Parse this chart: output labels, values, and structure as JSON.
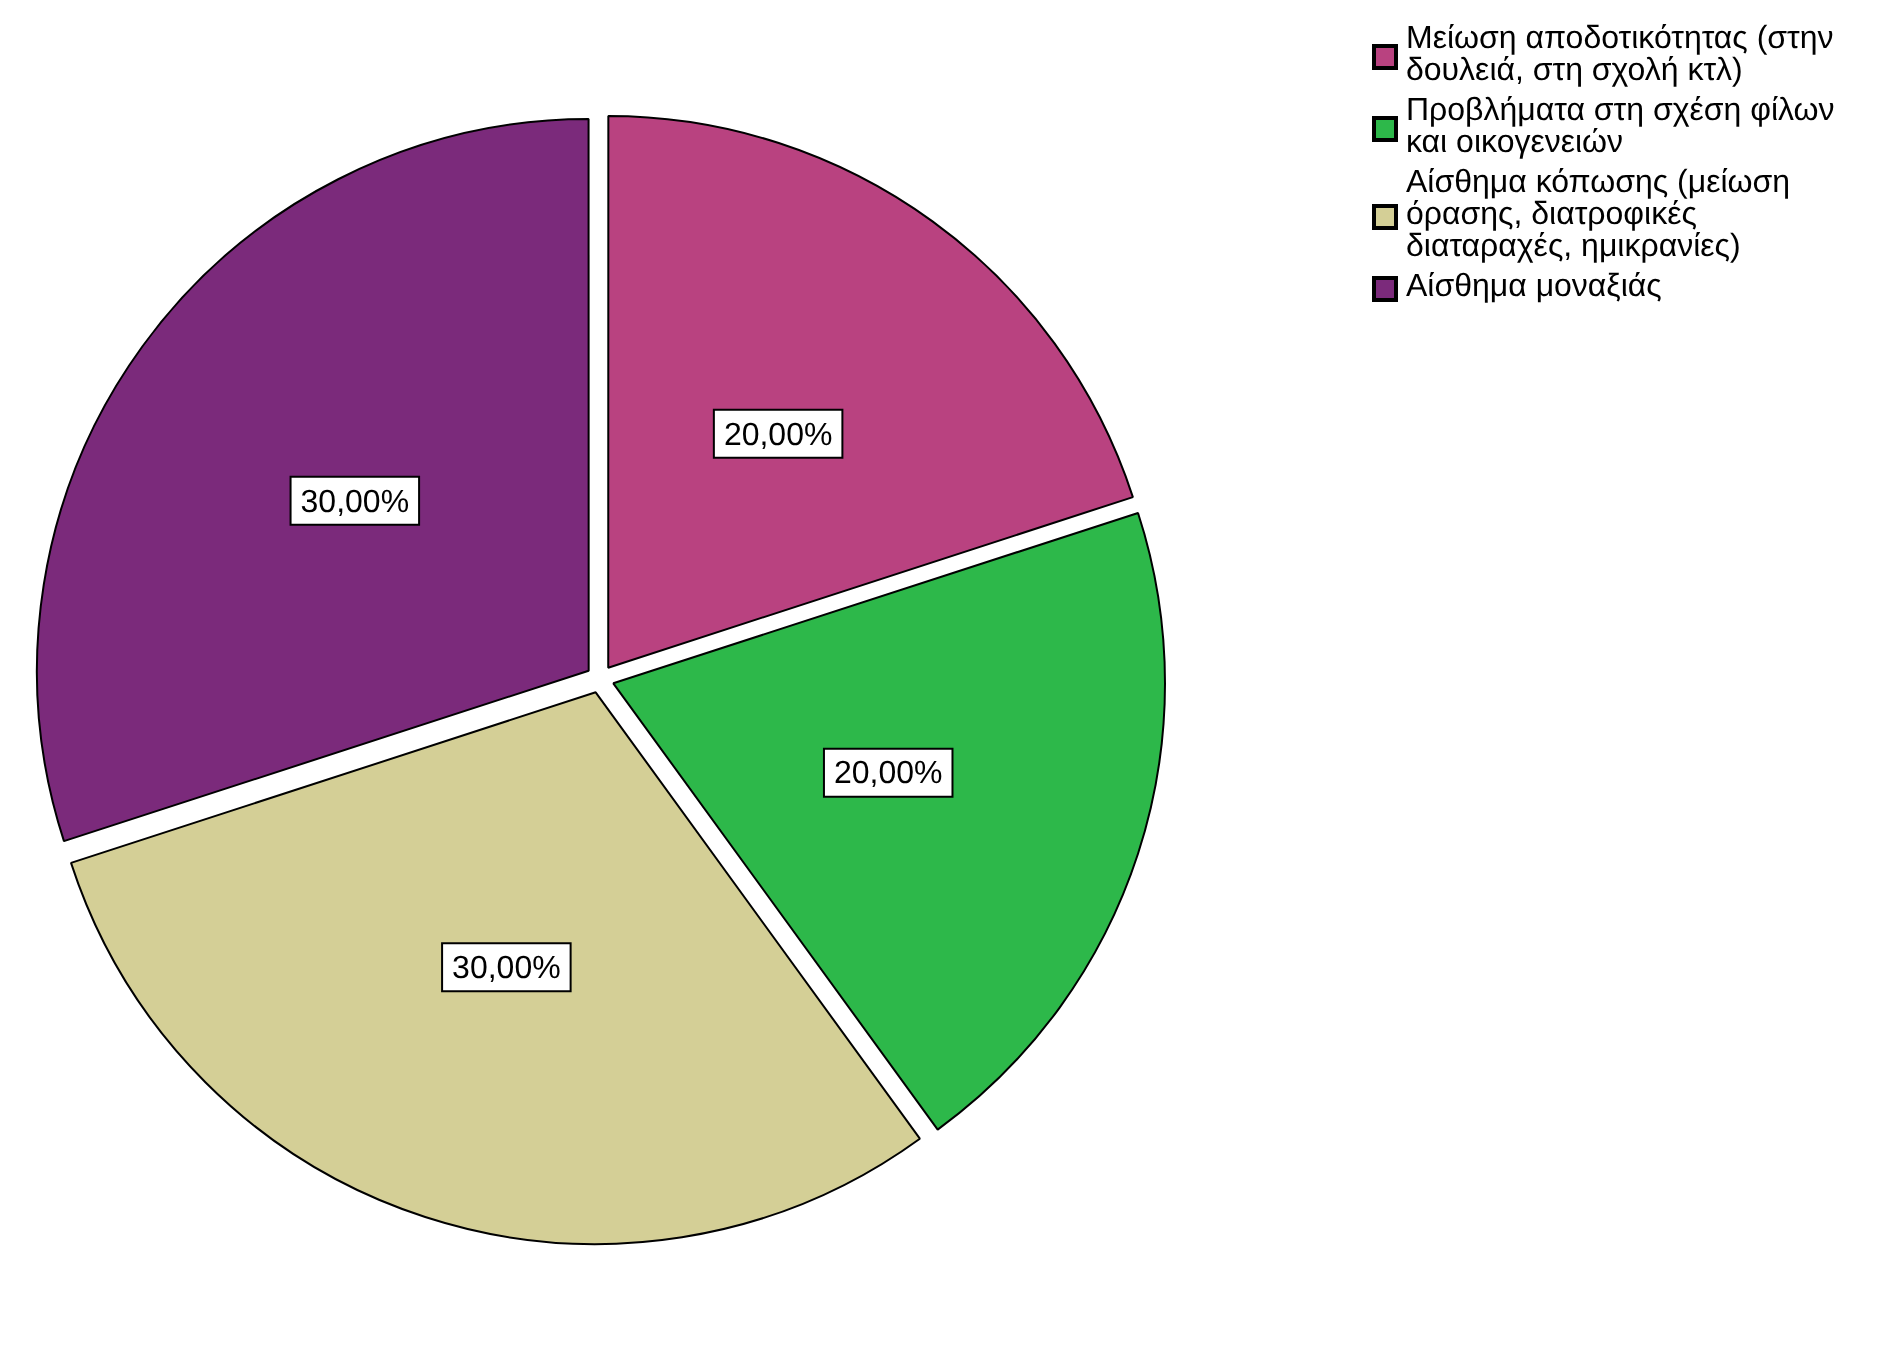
{
  "chart_data": {
    "type": "pie",
    "categories": [
      "Μείωση αποδοτικότητας (στην δουλειά, στη σχολή κτλ)",
      "Προβλήματα στη σχέση φίλων και οικογενειών",
      "Αίσθημα κόπωσης (μείωση όρασης, διατροφικές διαταραχές, ημικρανίες)",
      "Αίσθημα μοναξιάς"
    ],
    "values": [
      20,
      20,
      30,
      30
    ],
    "colors": [
      "#b94280",
      "#2db84a",
      "#d4cf96",
      "#7b2a7b"
    ],
    "value_labels": [
      "20,00%",
      "20,00%",
      "30,00%",
      "30,00%"
    ],
    "legend": "top right"
  }
}
